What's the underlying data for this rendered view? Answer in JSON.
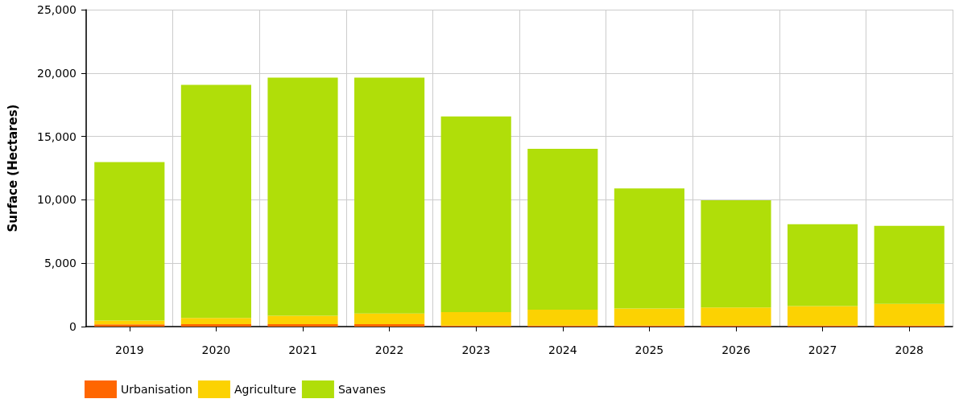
{
  "chart_data": {
    "type": "bar",
    "stacked": true,
    "ylabel": "Surface (Hectares)",
    "categories": [
      "2019",
      "2020",
      "2021",
      "2022",
      "2023",
      "2024",
      "2025",
      "2026",
      "2027",
      "2028"
    ],
    "series": [
      {
        "name": "Urbanisation",
        "color": "#ff6600",
        "values": [
          170,
          190,
          190,
          190,
          80,
          80,
          80,
          80,
          80,
          80
        ]
      },
      {
        "name": "Agriculture",
        "color": "#fcd202",
        "values": [
          310,
          490,
          660,
          840,
          1060,
          1250,
          1340,
          1430,
          1540,
          1710
        ]
      },
      {
        "name": "Savanes",
        "color": "#b0de09",
        "values": [
          12490,
          18380,
          18790,
          18610,
          15440,
          12700,
          9470,
          8450,
          6450,
          6150
        ]
      }
    ],
    "ylim": [
      0,
      25000
    ],
    "yticks": [
      {
        "value": 0,
        "label": "0"
      },
      {
        "value": 5000,
        "label": "5,000"
      },
      {
        "value": 10000,
        "label": "10,000"
      },
      {
        "value": 15000,
        "label": "15,000"
      },
      {
        "value": 20000,
        "label": "20,000"
      },
      {
        "value": 25000,
        "label": "25,000"
      }
    ],
    "grid": true,
    "legend": "bottom left"
  }
}
